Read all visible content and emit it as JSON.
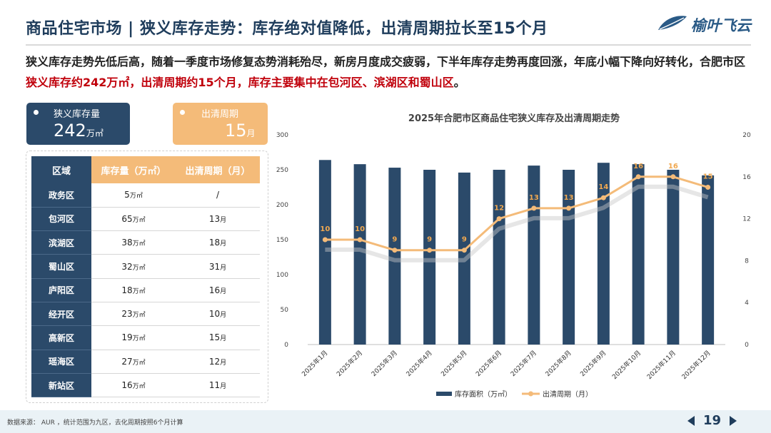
{
  "header": {
    "title": "商品住宅市场 | 狭义库存走势：库存绝对值降低，出清周期拉长至15个月",
    "logo_text": "榆叶飞云",
    "logo_icon": "leaf-icon"
  },
  "summary": {
    "text1": "狭义库存走势先低后高，随着一季度市场修复态势消耗殆尽，新房月度成交疲弱，下半年库存走势再度回涨，年底小幅下降向好转化，合肥市区",
    "highlight": "狭义库存约242万㎡，出清周期约15个月，库存主要集中在包河区、滨湖区和蜀山区",
    "text2": "。"
  },
  "kpis": {
    "inventory": {
      "label": "狭义库存量",
      "value": "242",
      "unit": "万㎡"
    },
    "cycle": {
      "label": "出清周期",
      "value": "15",
      "unit": "月"
    }
  },
  "table": {
    "headers": [
      "区域",
      "库存量（万㎡）",
      "出清周期（月）"
    ],
    "rows": [
      {
        "region": "政务区",
        "stock": "5",
        "stock_unit": "万㎡",
        "cycle": "/",
        "cycle_unit": ""
      },
      {
        "region": "包河区",
        "stock": "65",
        "stock_unit": "万㎡",
        "cycle": "13",
        "cycle_unit": "月"
      },
      {
        "region": "滨湖区",
        "stock": "38",
        "stock_unit": "万㎡",
        "cycle": "18",
        "cycle_unit": "月"
      },
      {
        "region": "蜀山区",
        "stock": "32",
        "stock_unit": "万㎡",
        "cycle": "31",
        "cycle_unit": "月"
      },
      {
        "region": "庐阳区",
        "stock": "18",
        "stock_unit": "万㎡",
        "cycle": "16",
        "cycle_unit": "月"
      },
      {
        "region": "经开区",
        "stock": "23",
        "stock_unit": "万㎡",
        "cycle": "10",
        "cycle_unit": "月"
      },
      {
        "region": "高新区",
        "stock": "19",
        "stock_unit": "万㎡",
        "cycle": "15",
        "cycle_unit": "月"
      },
      {
        "region": "瑶海区",
        "stock": "27",
        "stock_unit": "万㎡",
        "cycle": "12",
        "cycle_unit": "月"
      },
      {
        "region": "新站区",
        "stock": "16",
        "stock_unit": "万㎡",
        "cycle": "11",
        "cycle_unit": "月"
      }
    ]
  },
  "chart_data": {
    "type": "bar",
    "title": "2025年合肥市区商品住宅狭义库存及出清周期走势",
    "categories": [
      "2025年1月",
      "2025年2月",
      "2025年3月",
      "2025年4月",
      "2025年5月",
      "2025年6月",
      "2025年7月",
      "2025年8月",
      "2025年9月",
      "2025年10月",
      "2025年11月",
      "2025年12月"
    ],
    "series": [
      {
        "name": "库存面积（万㎡）",
        "type": "bar",
        "axis": "left",
        "values": [
          264,
          258,
          253,
          250,
          246,
          250,
          256,
          250,
          260,
          258,
          250,
          242
        ]
      },
      {
        "name": "出清周期（月）",
        "type": "line",
        "axis": "right",
        "values": [
          10,
          10,
          9,
          9,
          9,
          12,
          13,
          13,
          14,
          16,
          16,
          15
        ],
        "show_labels": true
      }
    ],
    "y_left": {
      "min": 0,
      "max": 300,
      "ticks": [
        0,
        50,
        100,
        150,
        200,
        250,
        300
      ]
    },
    "y_right": {
      "min": 0,
      "max": 20,
      "ticks": [
        0,
        4,
        8,
        12,
        16,
        20
      ]
    },
    "legend": "bottom",
    "grid": false,
    "colors": {
      "bar": "#2b4a6a",
      "line": "#f4bb79",
      "label": "#f0a850"
    }
  },
  "footer": {
    "source": "数据来源： AUR ，统计范围为九区，去化周期按照6个月计算",
    "page": "19"
  }
}
